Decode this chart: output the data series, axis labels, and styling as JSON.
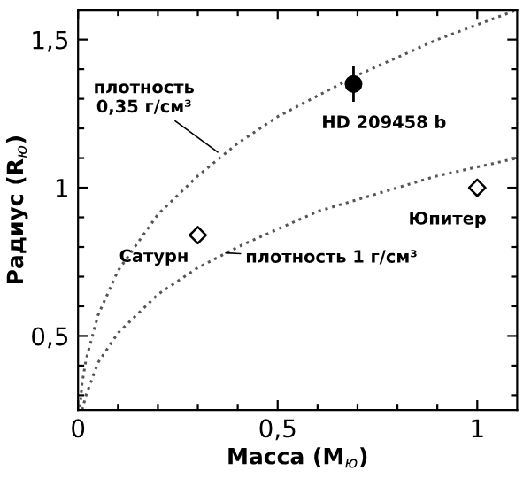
{
  "chart_data": {
    "type": "line",
    "xlabel": "Масса (M$_{ю}$)",
    "ylabel": "Радиус (R$_{ю}$)",
    "xlim": [
      0,
      1.1
    ],
    "ylim": [
      0.25,
      1.6
    ],
    "xticks": [
      {
        "value": 0,
        "label": "0"
      },
      {
        "value": 0.1,
        "label": null
      },
      {
        "value": 0.2,
        "label": null
      },
      {
        "value": 0.3,
        "label": null
      },
      {
        "value": 0.4,
        "label": null
      },
      {
        "value": 0.5,
        "label": "0,5"
      },
      {
        "value": 0.6,
        "label": null
      },
      {
        "value": 0.7,
        "label": null
      },
      {
        "value": 0.8,
        "label": null
      },
      {
        "value": 0.9,
        "label": null
      },
      {
        "value": 1,
        "label": "1"
      }
    ],
    "yticks": [
      {
        "value": 0.3,
        "label": null
      },
      {
        "value": 0.4,
        "label": null
      },
      {
        "value": 0.5,
        "label": "0,5"
      },
      {
        "value": 0.6,
        "label": null
      },
      {
        "value": 0.7,
        "label": null
      },
      {
        "value": 0.8,
        "label": null
      },
      {
        "value": 0.9,
        "label": null
      },
      {
        "value": 1,
        "label": "1"
      },
      {
        "value": 1.1,
        "label": null
      },
      {
        "value": 1.2,
        "label": null
      },
      {
        "value": 1.3,
        "label": null
      },
      {
        "value": 1.4,
        "label": null
      },
      {
        "value": 1.5,
        "label": "1,5"
      }
    ],
    "grid": false,
    "legend": false,
    "series": [
      {
        "line_style": "dotted",
        "color": "#555555",
        "x": [
          0.005,
          0.01,
          0.02,
          0.05,
          0.1,
          0.2,
          0.3,
          0.4,
          0.5,
          0.6,
          0.7,
          0.8,
          0.9,
          1.0,
          1.1
        ],
        "values": [
          0.26,
          0.34,
          0.42,
          0.57,
          0.72,
          0.91,
          1.04,
          1.15,
          1.24,
          1.31,
          1.38,
          1.44,
          1.5,
          1.55,
          1.6
        ]
      },
      {
        "line_style": "dotted",
        "color": "#555555",
        "x": [
          0.01,
          0.02,
          0.05,
          0.1,
          0.2,
          0.3,
          0.4,
          0.5,
          0.6,
          0.7,
          0.8,
          0.9,
          1.0,
          1.1
        ],
        "values": [
          0.25,
          0.3,
          0.41,
          0.51,
          0.64,
          0.73,
          0.8,
          0.86,
          0.92,
          0.96,
          1.0,
          1.04,
          1.07,
          1.1
        ]
      },
      {
        "type": "scatter",
        "marker": "circle",
        "color": "#000000",
        "x": [
          0.69
        ],
        "values": [
          1.35
        ],
        "errors": [
          0.06
        ]
      },
      {
        "type": "scatter",
        "marker": "diamond",
        "color": "#000000",
        "x": [
          0.3,
          1.0
        ],
        "values": [
          0.84,
          1.0
        ]
      }
    ],
    "annotations": [
      {
        "text": "плотность\n0,35 г/см³",
        "x": 0.35,
        "y": 1.12
      },
      {
        "text": "HD 209458 b",
        "x": 0.69,
        "y": 1.35
      },
      {
        "text": "Сатурн",
        "x": 0.3,
        "y": 0.84
      },
      {
        "text": "Юпитер",
        "x": 1.0,
        "y": 1.0
      },
      {
        "text": "плотность 1 г/см³",
        "x": 0.37,
        "y": 0.78
      }
    ]
  }
}
